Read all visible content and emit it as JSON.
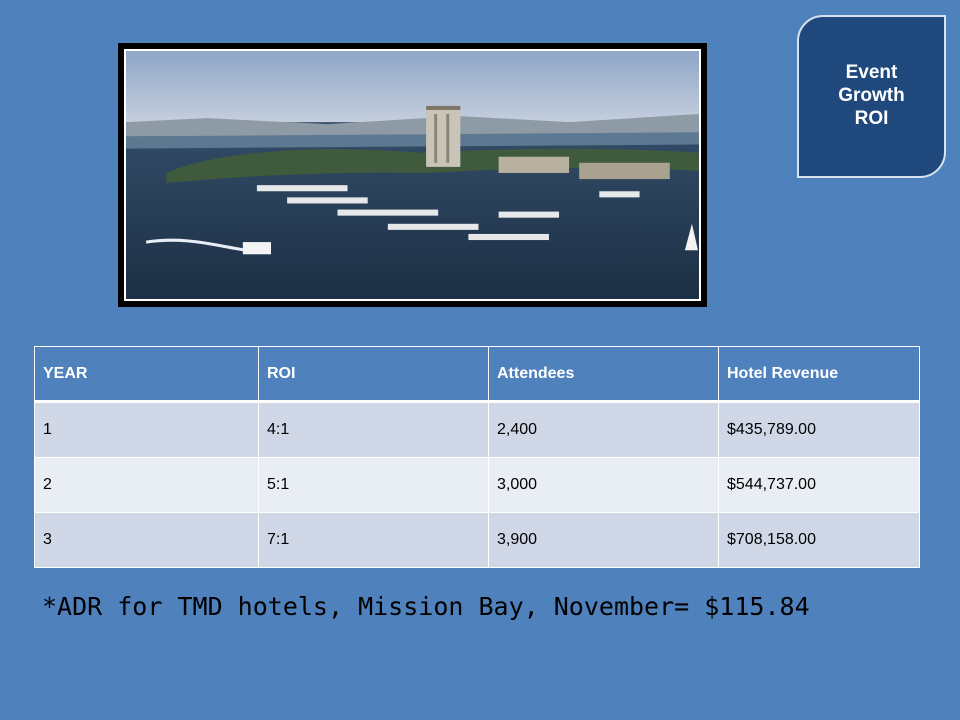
{
  "badge": {
    "lines": [
      "Event",
      "Growth",
      "ROI"
    ]
  },
  "photo": {
    "description_icon": "marina-photo"
  },
  "table": {
    "headers": [
      "YEAR",
      "ROI",
      "Attendees",
      "Hotel Revenue"
    ],
    "rows": [
      [
        "1",
        "4:1",
        "2,400",
        "$435,789.00"
      ],
      [
        "2",
        "5:1",
        "3,000",
        "$544,737.00"
      ],
      [
        "3",
        "7:1",
        "3,900",
        "$708,158.00"
      ]
    ]
  },
  "footnote": "*ADR for TMD hotels, Mission Bay, November= $115.84",
  "colors": {
    "background": "#4f81bd",
    "badge": "#1f497d",
    "row_odd": "#d0d8e8",
    "row_even": "#e9edf4"
  }
}
